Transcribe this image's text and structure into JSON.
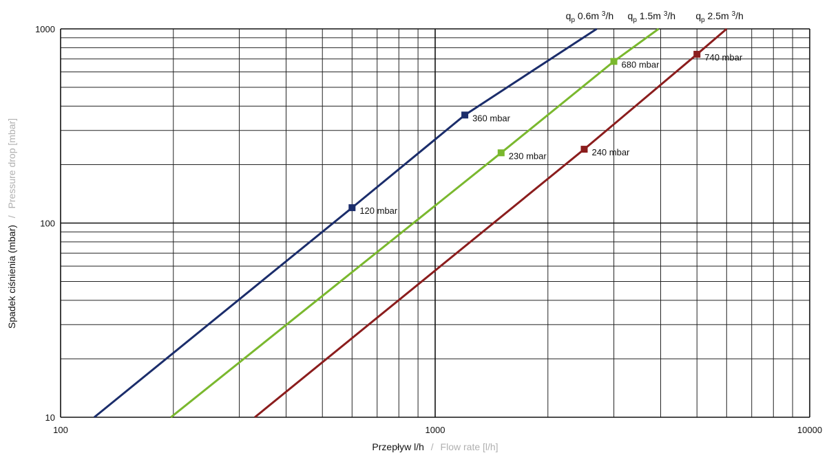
{
  "chart_data": {
    "type": "line",
    "x_scale": "log",
    "y_scale": "log",
    "xlim": [
      100,
      10000
    ],
    "ylim": [
      10,
      1000
    ],
    "x_ticks": [
      "100",
      "1000",
      "10000"
    ],
    "y_ticks": [
      "10",
      "100",
      "1000"
    ],
    "grid": true,
    "xlabel": "Przepływ l/h",
    "xlabel_alt": "Flow rate [l/h]",
    "ylabel": "Spadek ciśnienia (mbar)",
    "ylabel_alt": "Pressure drop [mbar]",
    "label_separator": "/",
    "series": [
      {
        "name": "qp 0.6m 3/h",
        "label_q": "q",
        "label_sub": "p",
        "label_main": " 0.6m ",
        "label_sup": "3",
        "label_tail": "/h",
        "color": "#1b2d6b",
        "x": [
          123,
          600,
          1200,
          2700
        ],
        "y": [
          10,
          120,
          360,
          1000
        ],
        "markers": [
          {
            "x": 600,
            "y": 120,
            "label": "120 mbar"
          },
          {
            "x": 1200,
            "y": 360,
            "label": "360 mbar"
          }
        ]
      },
      {
        "name": "qp 1.5m 3/h",
        "label_q": "q",
        "label_sub": "p",
        "label_main": " 1.5m ",
        "label_sup": "3",
        "label_tail": "/h",
        "color": "#7ab82e",
        "x": [
          197,
          1500,
          3000,
          3950
        ],
        "y": [
          10,
          230,
          680,
          1000
        ],
        "markers": [
          {
            "x": 1500,
            "y": 230,
            "label": "230 mbar"
          },
          {
            "x": 3000,
            "y": 680,
            "label": "680 mbar"
          }
        ]
      },
      {
        "name": "qp 2.5m 3/h",
        "label_q": "q",
        "label_sub": "p",
        "label_main": " 2.5m ",
        "label_sup": "3",
        "label_tail": "/h",
        "color": "#8b1d1d",
        "x": [
          330,
          2500,
          5000,
          6000
        ],
        "y": [
          10,
          240,
          740,
          1000
        ],
        "markers": [
          {
            "x": 2500,
            "y": 240,
            "label": "240 mbar"
          },
          {
            "x": 5000,
            "y": 740,
            "label": "740 mbar"
          }
        ]
      }
    ]
  }
}
